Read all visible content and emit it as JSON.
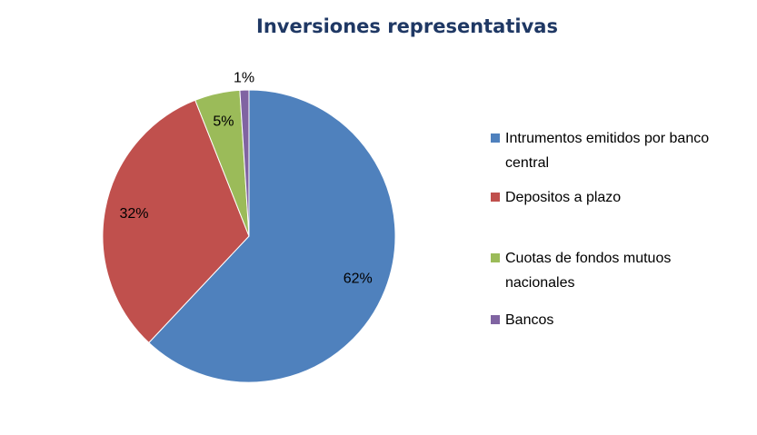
{
  "chart_data": {
    "type": "pie",
    "title": "Inversiones representativas",
    "categories": [
      "Intrumentos emitidos por banco central",
      "Depositos a plazo",
      "Cuotas de fondos mutuos nacionales",
      "Bancos"
    ],
    "values": [
      62,
      32,
      5,
      1
    ],
    "value_labels": [
      "62%",
      "32%",
      "5%",
      "1%"
    ],
    "colors": [
      "#4f81bd",
      "#c0504d",
      "#9bbb59",
      "#8064a2"
    ],
    "legend": "right"
  }
}
